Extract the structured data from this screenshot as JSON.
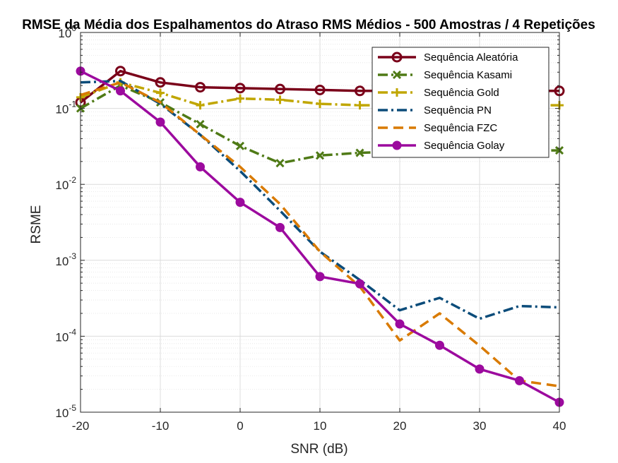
{
  "chart_data": {
    "type": "line",
    "title": "RMSE da Média dos Espalhamentos do Atraso RMS Médios - 500 Amostras / 4 Repetições",
    "xlabel": "SNR (dB)",
    "ylabel": "RSME",
    "xlim": [
      -20,
      40
    ],
    "ylim": [
      1e-05,
      1
    ],
    "yscale": "log",
    "grid": true,
    "minor_grid": true,
    "legend_position": "top-right",
    "x_ticks": [
      "-20",
      "-10",
      "0",
      "10",
      "20",
      "30",
      "40"
    ],
    "x_tick_values": [
      -20,
      -10,
      0,
      10,
      20,
      30,
      40
    ],
    "y_tick_exponents": [
      "0",
      "-1",
      "-2",
      "-3",
      "-4",
      "-5"
    ],
    "y_tick_base": "10",
    "x": [
      -20,
      -15,
      -10,
      -5,
      0,
      5,
      10,
      15,
      20,
      25,
      30,
      35,
      40
    ],
    "series": [
      {
        "name": "Sequência Aleatória",
        "color": "#7a0019",
        "dash": "solid",
        "marker": "circle-open",
        "values": [
          0.12,
          0.31,
          0.22,
          0.19,
          0.185,
          0.18,
          0.175,
          0.17,
          0.17,
          0.17,
          0.17,
          0.17,
          0.17
        ]
      },
      {
        "name": "Sequência Kasami",
        "color": "#4f7a16",
        "dash": "dashdot",
        "marker": "x",
        "values": [
          0.1,
          0.2,
          0.12,
          0.062,
          0.032,
          0.019,
          0.024,
          0.026,
          0.027,
          0.026,
          0.028,
          0.028,
          0.028
        ]
      },
      {
        "name": "Sequência Gold",
        "color": "#c0a600",
        "dash": "dashdot",
        "marker": "plus",
        "values": [
          0.14,
          0.22,
          0.16,
          0.11,
          0.135,
          0.13,
          0.115,
          0.11,
          0.11,
          0.11,
          0.11,
          0.11,
          0.11
        ]
      },
      {
        "name": "Sequência PN",
        "color": "#0b4c7a",
        "dash": "dashdot",
        "marker": "none",
        "values": [
          0.22,
          0.23,
          0.115,
          0.045,
          0.015,
          0.0045,
          0.0013,
          0.00055,
          0.00022,
          0.00032,
          0.00017,
          0.00025,
          0.00024
        ]
      },
      {
        "name": "Sequência FZC",
        "color": "#d97a00",
        "dash": "dashed",
        "marker": "none",
        "values": [
          0.15,
          0.22,
          0.12,
          0.045,
          0.017,
          0.0055,
          0.0013,
          0.00045,
          8.8e-05,
          0.0002,
          7.5e-05,
          2.6e-05,
          2.2e-05
        ]
      },
      {
        "name": "Sequência Golay",
        "color": "#9c0a9e",
        "dash": "solid",
        "marker": "dot",
        "values": [
          0.31,
          0.17,
          0.066,
          0.017,
          0.0058,
          0.0027,
          0.00061,
          0.00049,
          0.000145,
          7.6e-05,
          3.7e-05,
          2.6e-05,
          1.35e-05
        ]
      }
    ]
  }
}
